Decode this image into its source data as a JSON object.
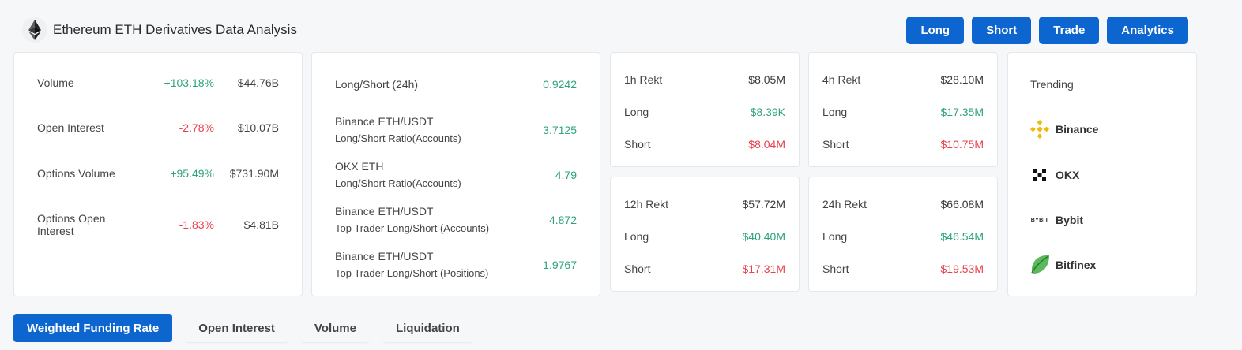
{
  "header": {
    "title": "Ethereum ETH Derivatives Data Analysis"
  },
  "top_buttons": [
    "Long",
    "Short",
    "Trade",
    "Analytics"
  ],
  "overview": [
    {
      "label": "Volume",
      "pct": "+103.18%",
      "value": "$44.76B",
      "trend": "up"
    },
    {
      "label": "Open Interest",
      "pct": "-2.78%",
      "value": "$10.07B",
      "trend": "down"
    },
    {
      "label": "Options Volume",
      "pct": "+95.49%",
      "value": "$731.90M",
      "trend": "up"
    },
    {
      "label": "Options Open Interest",
      "pct": "-1.83%",
      "value": "$4.81B",
      "trend": "down"
    }
  ],
  "ratios": [
    {
      "line1": "Long/Short (24h)",
      "line2": "",
      "value": "0.9242"
    },
    {
      "line1": "Binance ETH/USDT",
      "line2": "Long/Short Ratio(Accounts)",
      "value": "3.7125"
    },
    {
      "line1": "OKX ETH",
      "line2": "Long/Short Ratio(Accounts)",
      "value": "4.79"
    },
    {
      "line1": "Binance ETH/USDT",
      "line2": "Top Trader Long/Short (Accounts)",
      "value": "4.872"
    },
    {
      "line1": "Binance ETH/USDT",
      "line2": "Top Trader Long/Short (Positions)",
      "value": "1.9767"
    }
  ],
  "rekt": [
    {
      "label": "1h Rekt",
      "total": "$8.05M",
      "long_label": "Long",
      "long": "$8.39K",
      "short_label": "Short",
      "short": "$8.04M"
    },
    {
      "label": "4h Rekt",
      "total": "$28.10M",
      "long_label": "Long",
      "long": "$17.35M",
      "short_label": "Short",
      "short": "$10.75M"
    },
    {
      "label": "12h Rekt",
      "total": "$57.72M",
      "long_label": "Long",
      "long": "$40.40M",
      "short_label": "Short",
      "short": "$17.31M"
    },
    {
      "label": "24h Rekt",
      "total": "$66.08M",
      "long_label": "Long",
      "long": "$46.54M",
      "short_label": "Short",
      "short": "$19.53M"
    }
  ],
  "trending": {
    "title": "Trending",
    "items": [
      {
        "name": "Binance",
        "icon": "binance-icon"
      },
      {
        "name": "OKX",
        "icon": "okx-icon"
      },
      {
        "name": "Bybit",
        "icon": "bybit-icon",
        "icon_text": "BYBIT"
      },
      {
        "name": "Bitfinex",
        "icon": "bitfinex-icon"
      }
    ]
  },
  "tabs": [
    "Weighted Funding Rate",
    "Open Interest",
    "Volume",
    "Liquidation"
  ],
  "colors": {
    "accent": "#0d66d0",
    "up": "#2ea37c",
    "down": "#e8404d",
    "binance": "#f0b90b",
    "bitfinex": "#4caf50"
  }
}
